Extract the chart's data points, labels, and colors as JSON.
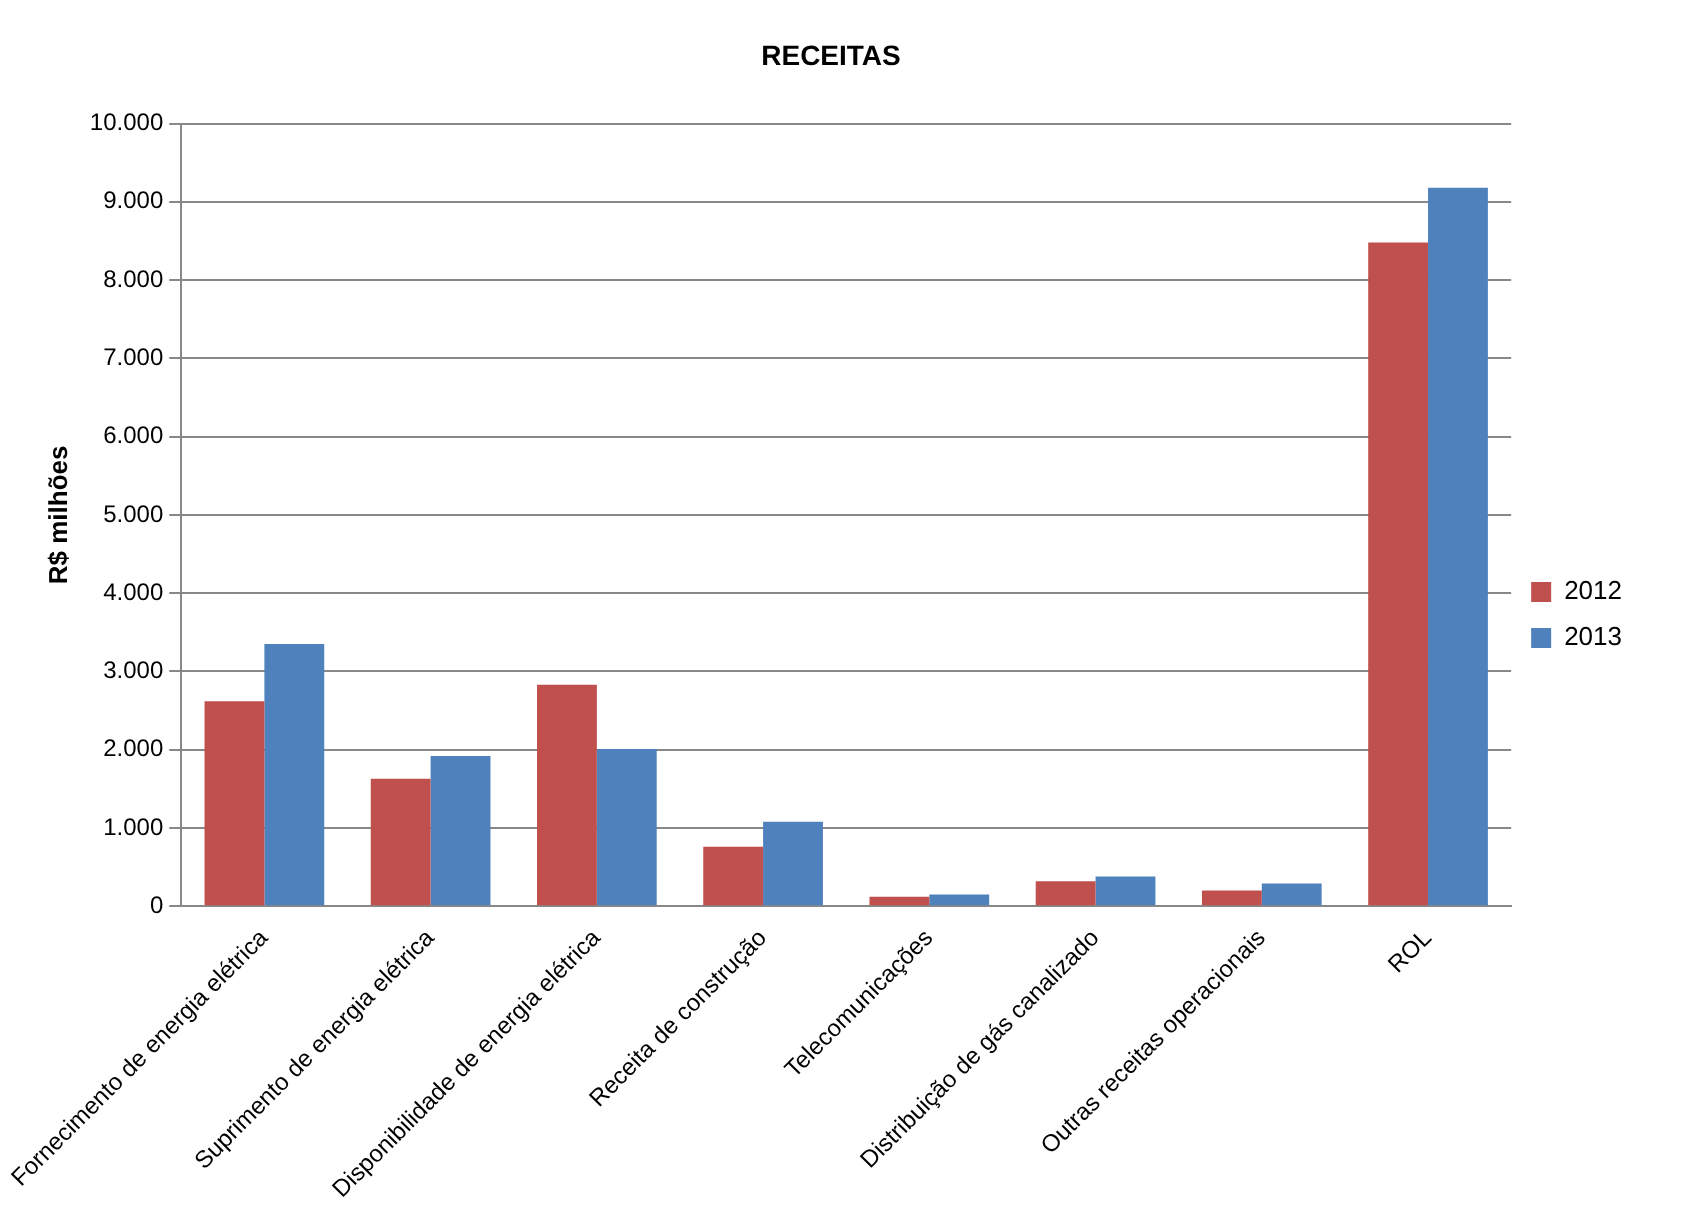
{
  "chart_data": {
    "type": "bar",
    "title": "RECEITAS",
    "ylabel": "R$ milhões",
    "categories": [
      "Fornecimento de energia elétrica",
      "Suprimento de energia elétrica",
      "Disponibilidade de energia elétrica",
      "Receita de construção",
      "Telecomunicações",
      "Distribuição de gás canalizado",
      "Outras receitas operacionais",
      "ROL"
    ],
    "series": [
      {
        "name": "2012",
        "color": "#c0504d",
        "values": [
          2620,
          1630,
          2830,
          760,
          120,
          320,
          200,
          8480
        ]
      },
      {
        "name": "2013",
        "color": "#4f81bd",
        "values": [
          3350,
          1920,
          2010,
          1080,
          150,
          380,
          290,
          9180
        ]
      }
    ],
    "ylim": [
      0,
      10000
    ],
    "yticks": [
      {
        "value": 0,
        "label": "0"
      },
      {
        "value": 1000,
        "label": "1.000"
      },
      {
        "value": 2000,
        "label": "2.000"
      },
      {
        "value": 3000,
        "label": "3.000"
      },
      {
        "value": 4000,
        "label": "4.000"
      },
      {
        "value": 5000,
        "label": "5.000"
      },
      {
        "value": 6000,
        "label": "6.000"
      },
      {
        "value": 7000,
        "label": "7.000"
      },
      {
        "value": 8000,
        "label": "8.000"
      },
      {
        "value": 9000,
        "label": "9.000"
      },
      {
        "value": 10000,
        "label": "10.000"
      }
    ],
    "grid": "y",
    "legend": "right"
  }
}
